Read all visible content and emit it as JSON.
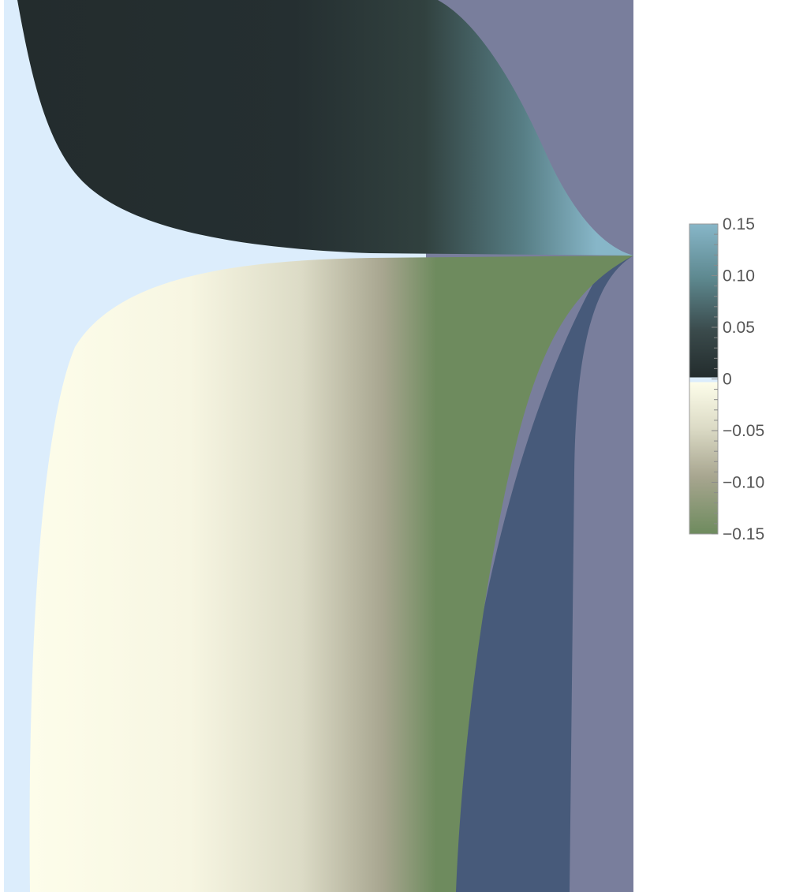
{
  "chart_data": {
    "type": "heatmap",
    "title": "",
    "xlabel": "",
    "ylabel": "",
    "colorbar": {
      "range": [
        -0.15,
        0.15
      ],
      "major_ticks": [
        0.15,
        0.1,
        0.05,
        0,
        -0.05,
        -0.1,
        -0.15
      ],
      "tick_labels": [
        "0.15",
        "0.10",
        "0.05",
        "0",
        "−0.05",
        "−0.10",
        "−0.15"
      ],
      "colors": {
        "max": "#87b6c8",
        "zero_positive": "#232c2d",
        "zero_negative": "#fdfdea",
        "mid_negative": "#a8a690",
        "min": "#6e8b5e",
        "band": "#dcedfc"
      }
    },
    "regions": {
      "undefined_left": "#dcedfc",
      "saturated_positive": "#797e9c",
      "saturated_negative": "#475a7a"
    }
  }
}
